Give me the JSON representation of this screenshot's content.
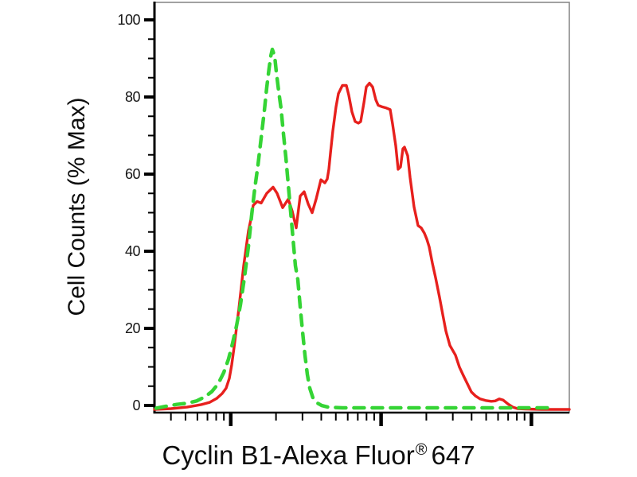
{
  "figure": {
    "y_axis_label": "Cell Counts (% Max)",
    "x_axis_label": {
      "prefix": "Cyclin B1-Alexa Fluor",
      "registered_mark": "®",
      "suffix": "647"
    }
  },
  "chart_data": {
    "type": "line",
    "subtype": "flow-cytometry-histogram-overlay",
    "title": "",
    "xlabel": "Cyclin B1-Alexa Fluor® 647",
    "ylabel": "Cell Counts (% Max)",
    "x_axis": {
      "scale": "log10",
      "tick_labels_shown": false,
      "decades_visible": 4,
      "note": "x coordinates of points are pixel positions along the unlabeled log axis (plot spans px 194-715, decade boundaries at px 290, 478, 668)"
    },
    "y_axis": {
      "range": [
        0,
        100
      ],
      "major_ticks": [
        0,
        20,
        40,
        60,
        80,
        100
      ],
      "minor_tick_step": 5
    },
    "grid": false,
    "legend_position": "none",
    "colors": {
      "stained": "#e7201d",
      "control": "#35d435",
      "axis": "#000000",
      "frame": "#8a8a8a",
      "text": "#151515"
    },
    "series": [
      {
        "name": "Cyclin B1-Alexa Fluor 647 stained cells (solid red)",
        "color_key": "stained",
        "line_style": "solid",
        "peak_percent": 84,
        "points": [
          [
            194,
            0
          ],
          [
            215,
            0.2
          ],
          [
            235,
            0.6
          ],
          [
            252,
            1.2
          ],
          [
            263,
            1.8
          ],
          [
            272,
            2.8
          ],
          [
            279,
            4.1
          ],
          [
            284,
            5.5
          ],
          [
            288,
            8
          ],
          [
            291,
            11.5
          ],
          [
            294,
            16
          ],
          [
            297,
            21
          ],
          [
            300,
            26
          ],
          [
            303,
            31.5
          ],
          [
            306,
            37
          ],
          [
            309,
            41.5
          ],
          [
            312,
            46
          ],
          [
            315,
            48.9
          ],
          [
            318,
            52.6
          ],
          [
            323,
            53.6
          ],
          [
            328,
            53.2
          ],
          [
            335,
            55.7
          ],
          [
            343,
            57.3
          ],
          [
            348,
            55.7
          ],
          [
            355,
            52
          ],
          [
            362,
            54.2
          ],
          [
            367,
            51.1
          ],
          [
            372,
            46.8
          ],
          [
            377,
            55
          ],
          [
            382,
            56.1
          ],
          [
            387,
            53
          ],
          [
            392,
            50.7
          ],
          [
            397,
            54.2
          ],
          [
            403,
            59.2
          ],
          [
            408,
            58.4
          ],
          [
            411,
            59.4
          ],
          [
            413,
            61.9
          ],
          [
            415,
            66
          ],
          [
            418,
            71.8
          ],
          [
            422,
            78
          ],
          [
            425,
            81.4
          ],
          [
            430,
            83.5
          ],
          [
            435,
            83.5
          ],
          [
            438,
            81
          ],
          [
            442,
            76.7
          ],
          [
            446,
            74.2
          ],
          [
            450,
            73.8
          ],
          [
            453,
            74.2
          ],
          [
            457,
            79
          ],
          [
            460,
            83.1
          ],
          [
            464,
            84.1
          ],
          [
            468,
            83.1
          ],
          [
            472,
            79.8
          ],
          [
            475,
            78.4
          ],
          [
            480,
            78
          ],
          [
            485,
            77.7
          ],
          [
            490,
            77.3
          ],
          [
            493,
            73.6
          ],
          [
            497,
            68
          ],
          [
            500,
            61.9
          ],
          [
            503,
            62.5
          ],
          [
            506,
            67.2
          ],
          [
            508,
            67.6
          ],
          [
            512,
            65.4
          ],
          [
            515,
            59.8
          ],
          [
            520,
            52.2
          ],
          [
            525,
            47.4
          ],
          [
            529,
            46.8
          ],
          [
            533,
            45.4
          ],
          [
            536,
            43.9
          ],
          [
            539,
            41.9
          ],
          [
            543,
            37.7
          ],
          [
            547,
            34
          ],
          [
            552,
            28.9
          ],
          [
            556,
            24.5
          ],
          [
            560,
            20.2
          ],
          [
            565,
            16.5
          ],
          [
            572,
            14
          ],
          [
            577,
            10.9
          ],
          [
            582,
            8.7
          ],
          [
            587,
            6.6
          ],
          [
            592,
            4.5
          ],
          [
            597,
            3.5
          ],
          [
            603,
            2.7
          ],
          [
            610,
            2.3
          ],
          [
            617,
            2.1
          ],
          [
            622,
            2.2
          ],
          [
            627,
            2.7
          ],
          [
            632,
            2.4
          ],
          [
            638,
            1.4
          ],
          [
            644,
            0.6
          ],
          [
            650,
            0.2
          ],
          [
            660,
            0.1
          ],
          [
            680,
            0
          ],
          [
            715,
            0
          ]
        ]
      },
      {
        "name": "Negative control (dashed green)",
        "color_key": "control",
        "line_style": "dashed",
        "peak_percent": 93,
        "points": [
          [
            196,
            0.3
          ],
          [
            208,
            0.8
          ],
          [
            222,
            1.3
          ],
          [
            235,
            1.6
          ],
          [
            247,
            2.2
          ],
          [
            257,
            3.2
          ],
          [
            266,
            4.6
          ],
          [
            274,
            6.6
          ],
          [
            281,
            9.5
          ],
          [
            287,
            13
          ],
          [
            292,
            17
          ],
          [
            297,
            21.5
          ],
          [
            302,
            27
          ],
          [
            307,
            34
          ],
          [
            312,
            42
          ],
          [
            316,
            50
          ],
          [
            320,
            57
          ],
          [
            324,
            63
          ],
          [
            328,
            70
          ],
          [
            332,
            77
          ],
          [
            335,
            83
          ],
          [
            338,
            88
          ],
          [
            340,
            91
          ],
          [
            342,
            92.8
          ],
          [
            345,
            91
          ],
          [
            347,
            87
          ],
          [
            350,
            82
          ],
          [
            353,
            77.5
          ],
          [
            356,
            71
          ],
          [
            359,
            65
          ],
          [
            362,
            58
          ],
          [
            365,
            51
          ],
          [
            368,
            44
          ],
          [
            371,
            37
          ],
          [
            374,
            33.5
          ],
          [
            377,
            26.5
          ],
          [
            380,
            20
          ],
          [
            383,
            14
          ],
          [
            386,
            9
          ],
          [
            389,
            5.5
          ],
          [
            393,
            3
          ],
          [
            398,
            1.7
          ],
          [
            404,
            1
          ],
          [
            412,
            0.6
          ],
          [
            430,
            0.4
          ],
          [
            460,
            0.4
          ],
          [
            500,
            0.4
          ],
          [
            540,
            0.4
          ],
          [
            580,
            0.4
          ],
          [
            620,
            0.4
          ],
          [
            660,
            0.4
          ],
          [
            692,
            0.4
          ]
        ]
      }
    ]
  }
}
